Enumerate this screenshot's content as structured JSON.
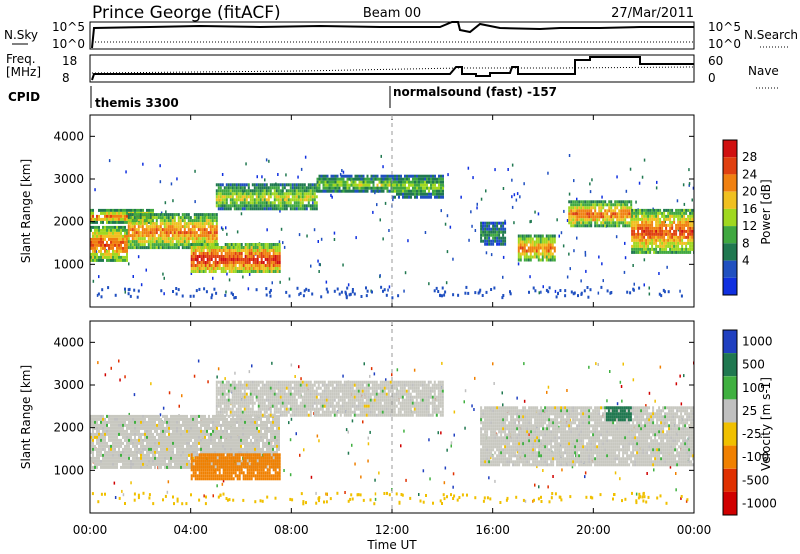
{
  "header": {
    "station": "Prince George (fitACF)",
    "beam": "Beam 00",
    "date": "27/Mar/2011"
  },
  "summary": {
    "nsky_label": "N.Sky",
    "nsky_ticks": [
      "10^5",
      "10^0"
    ],
    "nsearch_label": "N.Search",
    "nsearch_ticks": [
      "10^5",
      "10^0"
    ],
    "freq_label": "Freq.",
    "freq_unit": "[MHz]",
    "freq_ticks": [
      "18",
      "8"
    ],
    "nave_label": "Nave",
    "nave_ticks": [
      "60",
      "0"
    ],
    "cpid_label": "CPID",
    "cpid_segments": [
      "themis 3300",
      "normalsound (fast) -157"
    ]
  },
  "colors": {
    "power": [
      "#1030e0",
      "#2050c0",
      "#207850",
      "#40a840",
      "#a0d820",
      "#f0c020",
      "#f08010",
      "#e04010",
      "#d01010"
    ],
    "velocity": [
      "#2040c0",
      "#207850",
      "#40b040",
      "#c0c0c0",
      "#f0c000",
      "#f08000",
      "#e03000",
      "#d00000"
    ],
    "grey_scatter": "#c8c8c0"
  },
  "chart_data": [
    {
      "type": "heatmap",
      "quantity": "Power",
      "ylabel": "Slant Range [km]",
      "yticks": [
        1000,
        2000,
        3000,
        4000
      ],
      "ylim": [
        0,
        4500
      ],
      "xlim": [
        0,
        24
      ],
      "colorbar": {
        "label": "Power [dB]",
        "ticks": [
          "28",
          "24",
          "20",
          "16",
          "12",
          "8",
          "4"
        ],
        "range": [
          0,
          30
        ]
      },
      "echo_bands": [
        {
          "t_start": 0.0,
          "t_end": 1.5,
          "range_lo": 1100,
          "range_hi": 1900,
          "power": 24
        },
        {
          "t_start": 0.0,
          "t_end": 2.5,
          "range_lo": 2000,
          "range_hi": 2300,
          "power": 22
        },
        {
          "t_start": 1.5,
          "t_end": 5.0,
          "range_lo": 1400,
          "range_hi": 2200,
          "power": 22
        },
        {
          "t_start": 4.0,
          "t_end": 7.5,
          "range_lo": 800,
          "range_hi": 1500,
          "power": 26
        },
        {
          "t_start": 5.0,
          "t_end": 9.0,
          "range_lo": 2300,
          "range_hi": 2900,
          "power": 16
        },
        {
          "t_start": 9.0,
          "t_end": 12.0,
          "range_lo": 2700,
          "range_hi": 3100,
          "power": 14
        },
        {
          "t_start": 12.0,
          "t_end": 14.0,
          "range_lo": 2600,
          "range_hi": 3100,
          "power": 14
        },
        {
          "t_start": 15.5,
          "t_end": 16.5,
          "range_lo": 1500,
          "range_hi": 2000,
          "power": 10
        },
        {
          "t_start": 17.0,
          "t_end": 18.5,
          "range_lo": 1100,
          "range_hi": 1700,
          "power": 22
        },
        {
          "t_start": 19.0,
          "t_end": 21.5,
          "range_lo": 1900,
          "range_hi": 2500,
          "power": 22
        },
        {
          "t_start": 21.5,
          "t_end": 24.0,
          "range_lo": 1300,
          "range_hi": 2300,
          "power": 24
        }
      ]
    },
    {
      "type": "heatmap",
      "quantity": "Velocity",
      "ylabel": "Slant Range [km]",
      "yticks": [
        1000,
        2000,
        3000,
        4000
      ],
      "ylim": [
        0,
        4500
      ],
      "xlim": [
        0,
        24
      ],
      "colorbar": {
        "label": "Velocity [m s-1]",
        "ticks": [
          "1000",
          "500",
          "100",
          "25",
          "-25",
          "-100",
          "-500",
          "-1000"
        ]
      },
      "echo_bands": [
        {
          "t_start": 0.0,
          "t_end": 7.5,
          "range_lo": 1100,
          "range_hi": 2300,
          "velocity": 0
        },
        {
          "t_start": 4.0,
          "t_end": 7.5,
          "range_lo": 800,
          "range_hi": 1400,
          "velocity": -150
        },
        {
          "t_start": 5.0,
          "t_end": 14.0,
          "range_lo": 2300,
          "range_hi": 3100,
          "velocity": 0
        },
        {
          "t_start": 15.5,
          "t_end": 24.0,
          "range_lo": 1100,
          "range_hi": 2500,
          "velocity": 0
        },
        {
          "t_start": 20.5,
          "t_end": 21.5,
          "range_lo": 2200,
          "range_hi": 2500,
          "velocity": 150
        }
      ]
    }
  ],
  "xaxis": {
    "label": "Time UT",
    "ticks": [
      "00:00",
      "04:00",
      "08:00",
      "12:00",
      "16:00",
      "20:00",
      "00:00"
    ],
    "range": [
      0,
      24
    ]
  }
}
